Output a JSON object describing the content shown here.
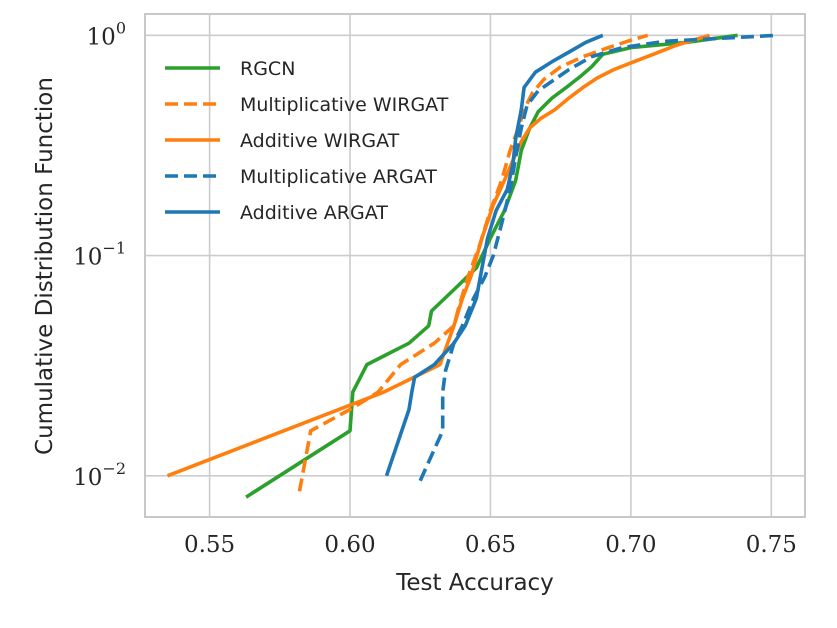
{
  "chart_data": {
    "type": "line",
    "title": "",
    "xlabel": "Test Accuracy",
    "ylabel": "Cumulative Distribution Function",
    "xlim": [
      0.527,
      0.762
    ],
    "ylim": [
      0.0065,
      1.25
    ],
    "yscale": "log",
    "grid": true,
    "legend_position": "top-left",
    "x_ticks": [
      {
        "value": 0.55,
        "label": "0.55"
      },
      {
        "value": 0.6,
        "label": "0.60"
      },
      {
        "value": 0.65,
        "label": "0.65"
      },
      {
        "value": 0.7,
        "label": "0.70"
      },
      {
        "value": 0.75,
        "label": "0.75"
      }
    ],
    "y_ticks": [
      {
        "value": 0.01,
        "base": "10",
        "exp": "−2"
      },
      {
        "value": 0.1,
        "base": "10",
        "exp": "−1"
      },
      {
        "value": 1,
        "base": "10",
        "exp": "0"
      }
    ],
    "series": [
      {
        "name": "RGCN",
        "color": "#2ca02c",
        "dash": "solid",
        "points": [
          [
            0.563,
            0.008
          ],
          [
            0.6,
            0.016
          ],
          [
            0.601,
            0.024
          ],
          [
            0.606,
            0.032
          ],
          [
            0.621,
            0.04
          ],
          [
            0.628,
            0.048
          ],
          [
            0.629,
            0.056
          ],
          [
            0.638,
            0.072
          ],
          [
            0.645,
            0.088
          ],
          [
            0.65,
            0.12
          ],
          [
            0.655,
            0.16
          ],
          [
            0.659,
            0.22
          ],
          [
            0.661,
            0.3
          ],
          [
            0.664,
            0.38
          ],
          [
            0.667,
            0.45
          ],
          [
            0.672,
            0.52
          ],
          [
            0.677,
            0.58
          ],
          [
            0.682,
            0.65
          ],
          [
            0.686,
            0.72
          ],
          [
            0.69,
            0.82
          ],
          [
            0.7,
            0.88
          ],
          [
            0.72,
            0.93
          ],
          [
            0.738,
            1.0
          ]
        ]
      },
      {
        "name": "Multiplicative WIRGAT",
        "color": "#ff7f0e",
        "dash": "dashed",
        "points": [
          [
            0.582,
            0.0085
          ],
          [
            0.586,
            0.016
          ],
          [
            0.6,
            0.02
          ],
          [
            0.61,
            0.024
          ],
          [
            0.618,
            0.032
          ],
          [
            0.63,
            0.04
          ],
          [
            0.637,
            0.048
          ],
          [
            0.639,
            0.06
          ],
          [
            0.642,
            0.08
          ],
          [
            0.646,
            0.11
          ],
          [
            0.65,
            0.16
          ],
          [
            0.654,
            0.22
          ],
          [
            0.657,
            0.3
          ],
          [
            0.66,
            0.38
          ],
          [
            0.662,
            0.46
          ],
          [
            0.665,
            0.55
          ],
          [
            0.669,
            0.63
          ],
          [
            0.675,
            0.72
          ],
          [
            0.683,
            0.8
          ],
          [
            0.692,
            0.88
          ],
          [
            0.7,
            0.95
          ],
          [
            0.706,
            1.0
          ]
        ]
      },
      {
        "name": "Additive WIRGAT",
        "color": "#ff7f0e",
        "dash": "solid",
        "points": [
          [
            0.535,
            0.01
          ],
          [
            0.612,
            0.024
          ],
          [
            0.632,
            0.032
          ],
          [
            0.637,
            0.048
          ],
          [
            0.64,
            0.064
          ],
          [
            0.643,
            0.08
          ],
          [
            0.647,
            0.12
          ],
          [
            0.651,
            0.17
          ],
          [
            0.655,
            0.22
          ],
          [
            0.658,
            0.27
          ],
          [
            0.661,
            0.33
          ],
          [
            0.664,
            0.38
          ],
          [
            0.668,
            0.42
          ],
          [
            0.673,
            0.46
          ],
          [
            0.678,
            0.52
          ],
          [
            0.683,
            0.58
          ],
          [
            0.688,
            0.64
          ],
          [
            0.694,
            0.7
          ],
          [
            0.7,
            0.75
          ],
          [
            0.708,
            0.82
          ],
          [
            0.716,
            0.9
          ],
          [
            0.728,
            1.0
          ]
        ]
      },
      {
        "name": "Multiplicative ARGAT",
        "color": "#1f77b4",
        "dash": "dashed",
        "points": [
          [
            0.625,
            0.0095
          ],
          [
            0.633,
            0.016
          ],
          [
            0.633,
            0.024
          ],
          [
            0.634,
            0.03
          ],
          [
            0.637,
            0.04
          ],
          [
            0.64,
            0.048
          ],
          [
            0.644,
            0.064
          ],
          [
            0.648,
            0.08
          ],
          [
            0.651,
            0.1
          ],
          [
            0.654,
            0.14
          ],
          [
            0.657,
            0.2
          ],
          [
            0.659,
            0.28
          ],
          [
            0.661,
            0.38
          ],
          [
            0.663,
            0.48
          ],
          [
            0.667,
            0.56
          ],
          [
            0.672,
            0.62
          ],
          [
            0.678,
            0.7
          ],
          [
            0.686,
            0.8
          ],
          [
            0.697,
            0.88
          ],
          [
            0.712,
            0.94
          ],
          [
            0.752,
            1.0
          ]
        ]
      },
      {
        "name": "Additive ARGAT",
        "color": "#1f77b4",
        "dash": "solid",
        "points": [
          [
            0.613,
            0.01
          ],
          [
            0.621,
            0.02
          ],
          [
            0.622,
            0.024
          ],
          [
            0.623,
            0.028
          ],
          [
            0.63,
            0.032
          ],
          [
            0.637,
            0.04
          ],
          [
            0.641,
            0.048
          ],
          [
            0.645,
            0.064
          ],
          [
            0.647,
            0.088
          ],
          [
            0.649,
            0.12
          ],
          [
            0.652,
            0.16
          ],
          [
            0.656,
            0.2
          ],
          [
            0.658,
            0.26
          ],
          [
            0.659,
            0.34
          ],
          [
            0.661,
            0.46
          ],
          [
            0.662,
            0.58
          ],
          [
            0.666,
            0.68
          ],
          [
            0.672,
            0.76
          ],
          [
            0.678,
            0.84
          ],
          [
            0.684,
            0.93
          ],
          [
            0.69,
            1.0
          ]
        ]
      }
    ]
  }
}
